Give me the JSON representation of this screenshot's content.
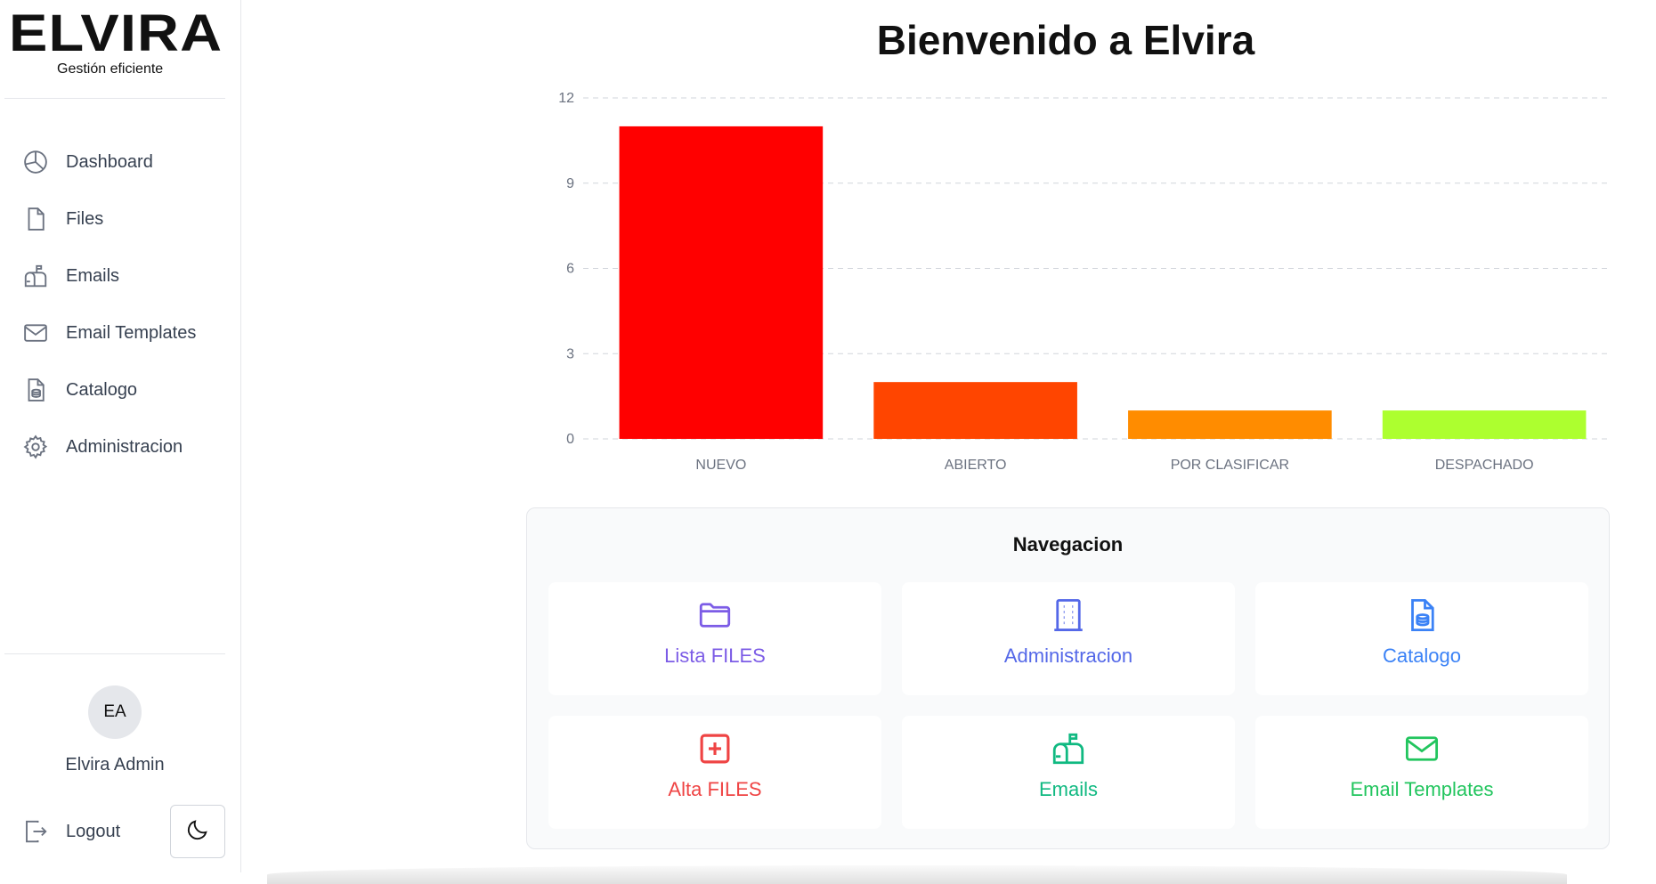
{
  "app": {
    "logo_text": "ELVIRA",
    "tagline": "Gestión eficiente"
  },
  "sidebar": {
    "items": [
      {
        "label": "Dashboard",
        "icon": "pie-chart-icon"
      },
      {
        "label": "Files",
        "icon": "file-icon"
      },
      {
        "label": "Emails",
        "icon": "mailbox-icon"
      },
      {
        "label": "Email Templates",
        "icon": "envelope-icon"
      },
      {
        "label": "Catalogo",
        "icon": "file-database-icon"
      },
      {
        "label": "Administracion",
        "icon": "gear-icon"
      }
    ],
    "user": {
      "initials": "EA",
      "name": "Elvira Admin"
    },
    "logout_label": "Logout",
    "theme_icon": "moon-icon"
  },
  "main": {
    "title": "Bienvenido a Elvira"
  },
  "chart_data": {
    "type": "bar",
    "categories": [
      "NUEVO",
      "ABIERTO",
      "POR CLASIFICAR",
      "DESPACHADO"
    ],
    "values": [
      11,
      2,
      1,
      1
    ],
    "colors": [
      "#ff0000",
      "#ff4500",
      "#ff8c00",
      "#adff2f"
    ],
    "yticks": [
      0,
      3,
      6,
      9,
      12
    ],
    "ylim": [
      0,
      12
    ],
    "grid": true
  },
  "navigation": {
    "title": "Navegacion",
    "cards": [
      {
        "label": "Lista FILES",
        "icon": "folder-icon",
        "color": "#7c5ce6"
      },
      {
        "label": "Administracion",
        "icon": "building-icon",
        "color": "#5468e8"
      },
      {
        "label": "Catalogo",
        "icon": "file-database-icon",
        "color": "#3b82f6"
      },
      {
        "label": "Alta FILES",
        "icon": "plus-square-icon",
        "color": "#ef4444"
      },
      {
        "label": "Emails",
        "icon": "mailbox-icon",
        "color": "#10b981"
      },
      {
        "label": "Email Templates",
        "icon": "envelope-icon",
        "color": "#22c55e"
      }
    ]
  }
}
